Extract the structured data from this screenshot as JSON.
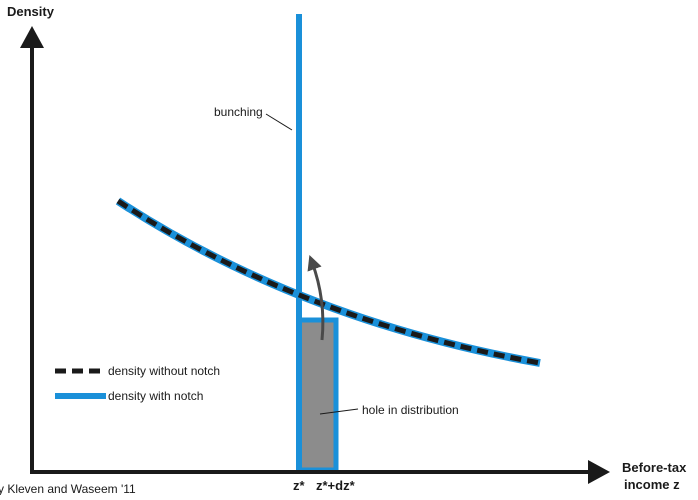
{
  "axes": {
    "y_label": "Density",
    "x_label_line1": "Before-tax",
    "x_label_line2": "income z",
    "tick_z_star": "z*",
    "tick_z_star_dz": "z*+dz*"
  },
  "annotations": {
    "bunching": "bunching",
    "hole": "hole in distribution"
  },
  "legend": {
    "without_notch": "density without notch",
    "with_notch": "density with notch"
  },
  "source_text": "y Kleven and Waseem '11",
  "colors": {
    "blue": "#1a90d9",
    "black": "#1a1a1a",
    "hole_fill": "#8c8c8c"
  }
}
